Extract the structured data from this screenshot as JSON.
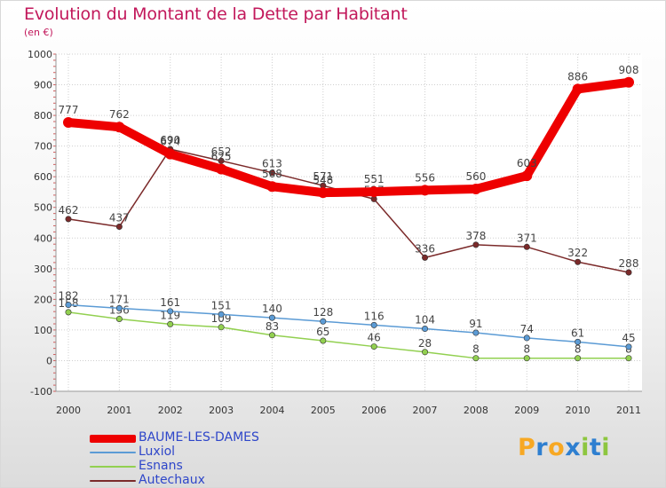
{
  "title": "Evolution du Montant de la Dette par Habitant",
  "unit": "(en €)",
  "brand": {
    "letters": [
      "P",
      "r",
      "o",
      "x",
      "i",
      "t",
      "i"
    ],
    "colors": [
      "#f7a823",
      "#2e7fd0",
      "#f7a823",
      "#2e7fd0",
      "#8dc63f",
      "#2e7fd0",
      "#8dc63f"
    ]
  },
  "chart_data": {
    "type": "line",
    "categories": [
      "2000",
      "2001",
      "2002",
      "2003",
      "2004",
      "2005",
      "2006",
      "2007",
      "2008",
      "2009",
      "2010",
      "2011"
    ],
    "ylim": [
      -100,
      1000
    ],
    "yticks": [
      "-100",
      "0",
      "100",
      "200",
      "300",
      "400",
      "500",
      "600",
      "700",
      "800",
      "900",
      "1000"
    ],
    "grid": true,
    "legend_position": "bottom-left",
    "series": [
      {
        "name": "BAUME-LES-DAMES",
        "color": "#ee0000",
        "values": [
          777,
          762,
          674,
          625,
          568,
          548,
          551,
          556,
          560,
          603,
          886,
          908
        ],
        "labels": [
          "777",
          "762",
          "674",
          "625",
          "568",
          "548",
          "551",
          "556",
          "560",
          "603",
          "886",
          "908"
        ]
      },
      {
        "name": "Luxiol",
        "color": "#5b9bd5",
        "values": [
          182,
          171,
          161,
          151,
          140,
          128,
          116,
          104,
          91,
          74,
          61,
          45
        ],
        "labels": [
          "182",
          "171",
          "161",
          "151",
          "140",
          "128",
          "116",
          "104",
          "91",
          "74",
          "61",
          "45"
        ]
      },
      {
        "name": "Esnans",
        "color": "#92d050",
        "values": [
          158,
          136,
          119,
          109,
          83,
          65,
          46,
          28,
          8,
          8,
          8,
          8
        ],
        "labels": [
          "158",
          "136",
          "119",
          "109",
          "83",
          "65",
          "46",
          "28",
          "8",
          "8",
          "8",
          "8"
        ]
      },
      {
        "name": "Autechaux",
        "color": "#7b2a2a",
        "values": [
          462,
          437,
          690,
          652,
          613,
          571,
          527,
          336,
          378,
          371,
          322,
          288
        ],
        "labels": [
          "462",
          "437",
          "690",
          "652",
          "613",
          "571",
          "527",
          "336",
          "378",
          "371",
          "322",
          "288"
        ]
      }
    ]
  }
}
